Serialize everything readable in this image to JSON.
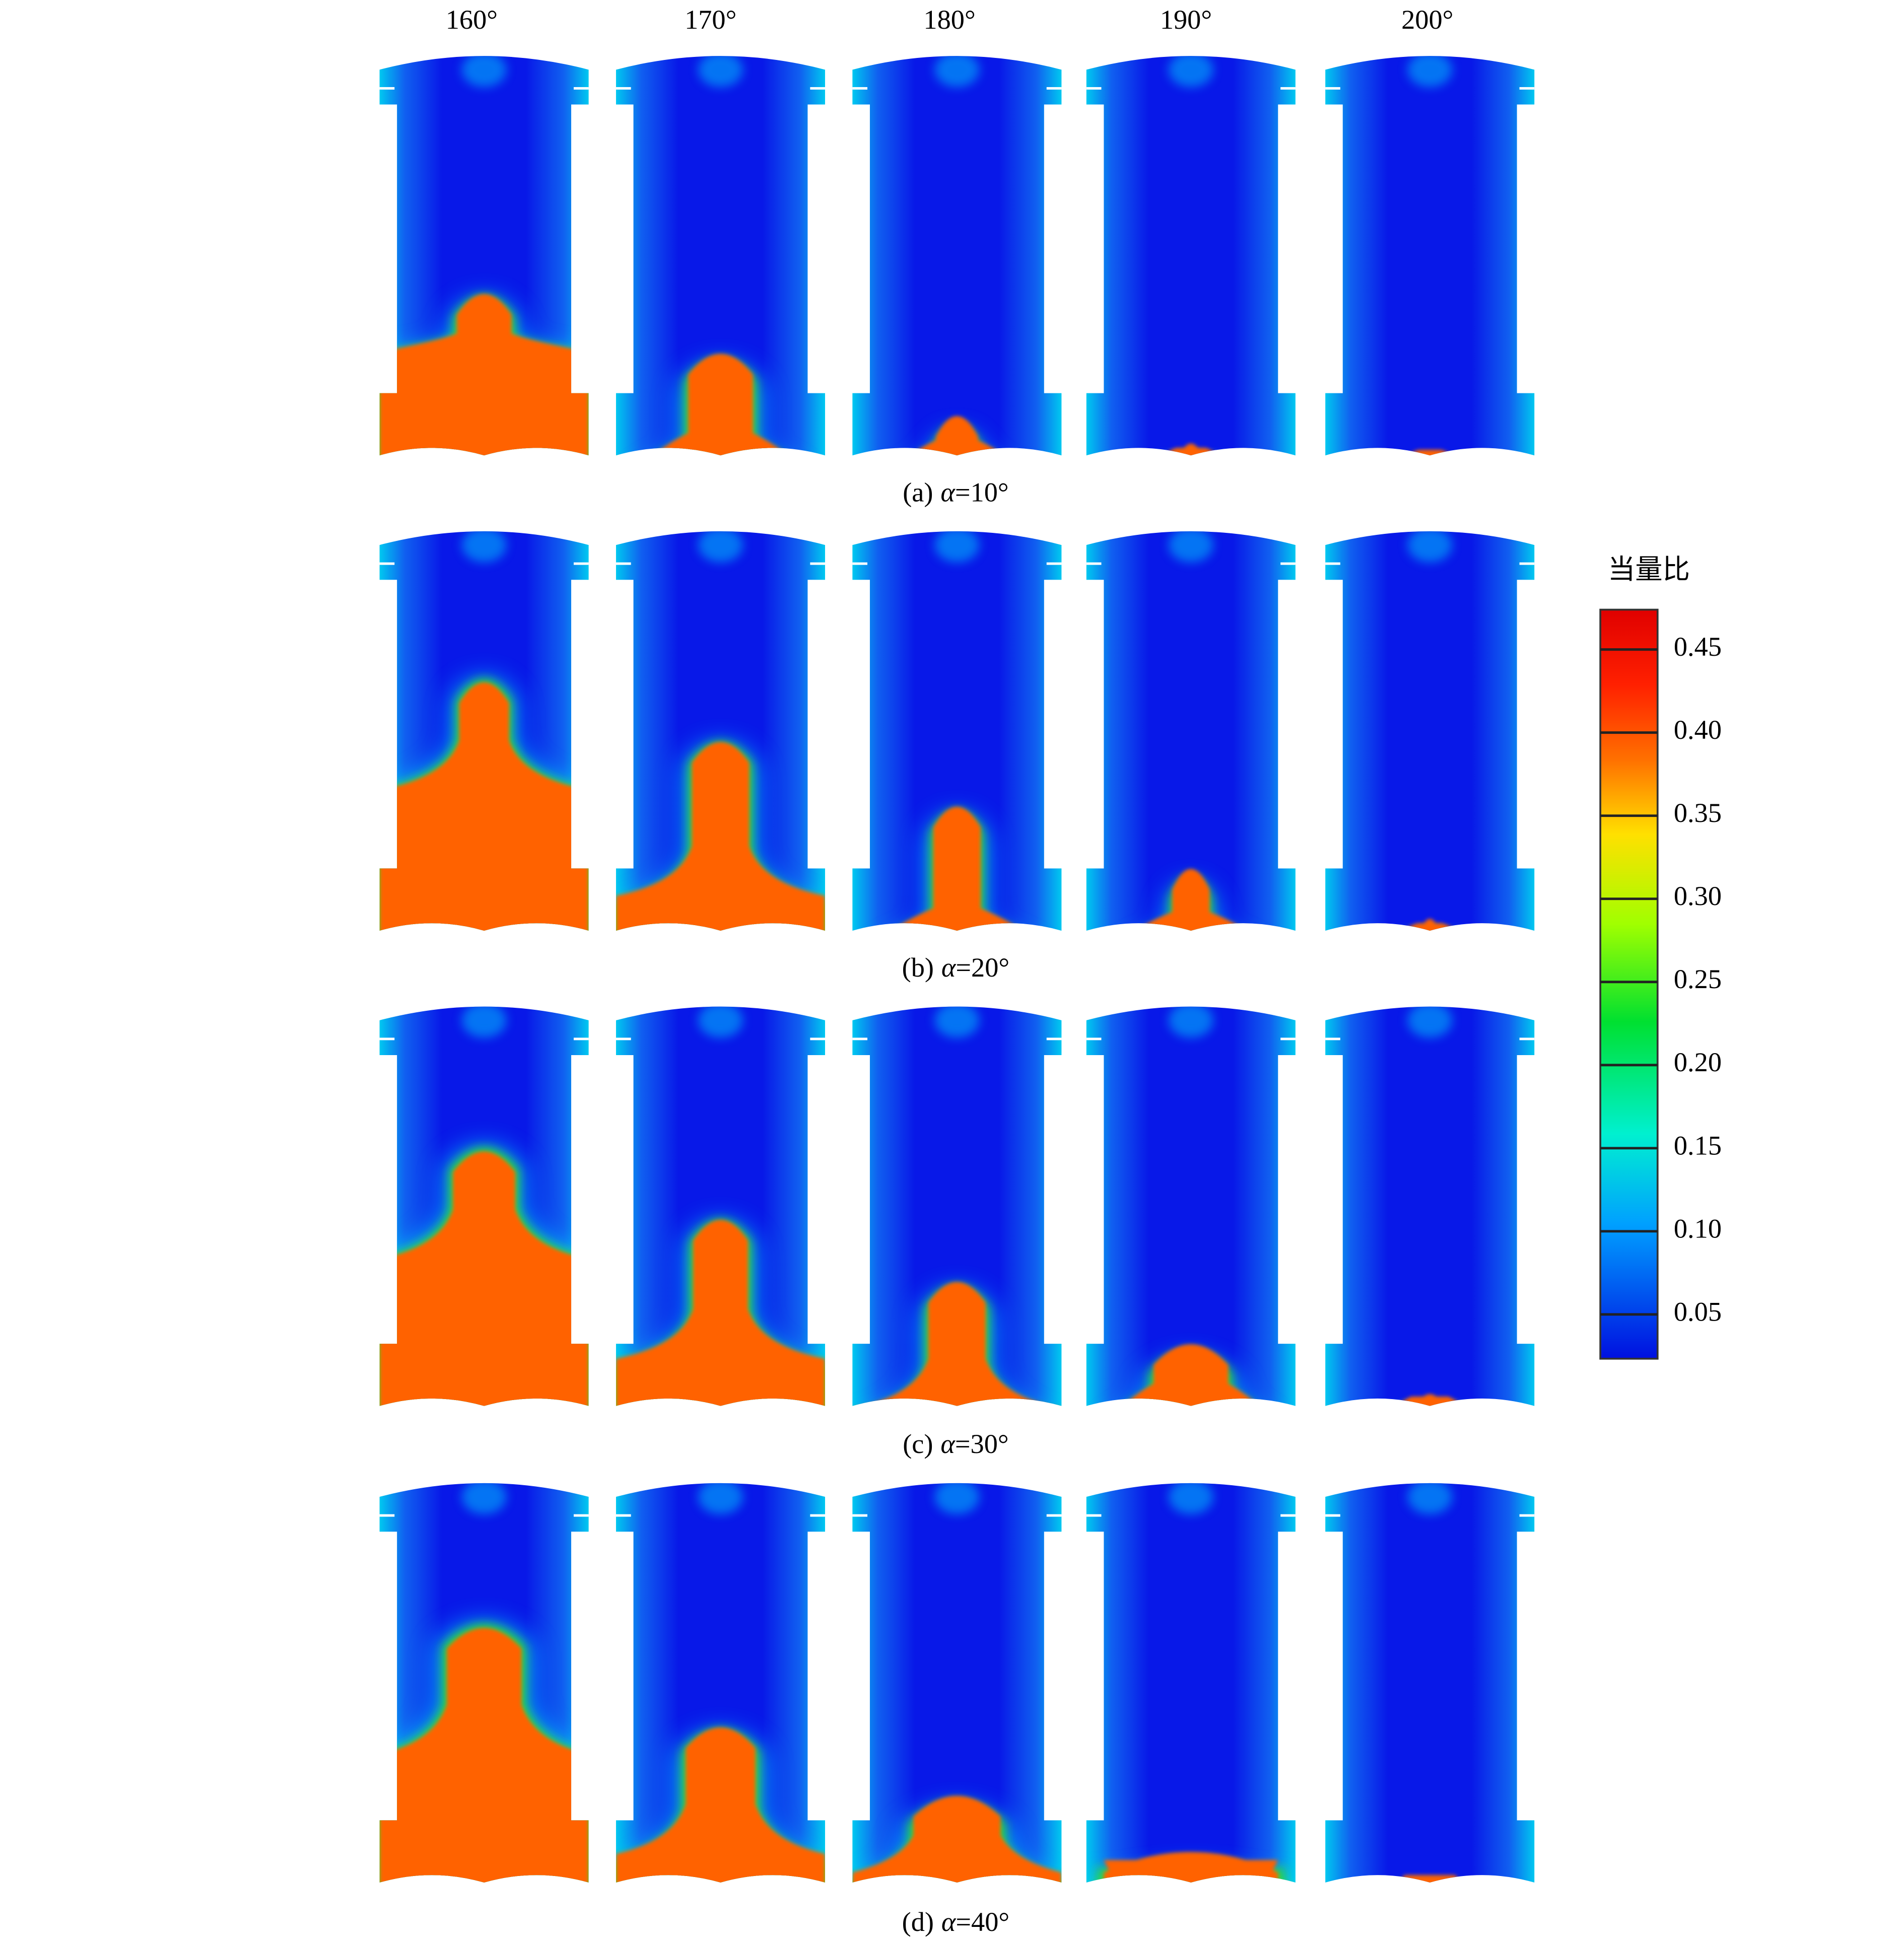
{
  "columns": [
    "160°",
    "170°",
    "180°",
    "190°",
    "200°"
  ],
  "rows": [
    {
      "label": "(a)",
      "param": "α",
      "value": "=10°"
    },
    {
      "label": "(b)",
      "param": "α",
      "value": "=20°"
    },
    {
      "label": "(c)",
      "param": "α",
      "value": "=30°"
    },
    {
      "label": "(d)",
      "param": "α",
      "value": "=40°"
    }
  ],
  "colorbar": {
    "title": "当量比",
    "ticks": [
      "0.45",
      "0.40",
      "0.35",
      "0.30",
      "0.25",
      "0.20",
      "0.15",
      "0.10",
      "0.05"
    ]
  }
}
